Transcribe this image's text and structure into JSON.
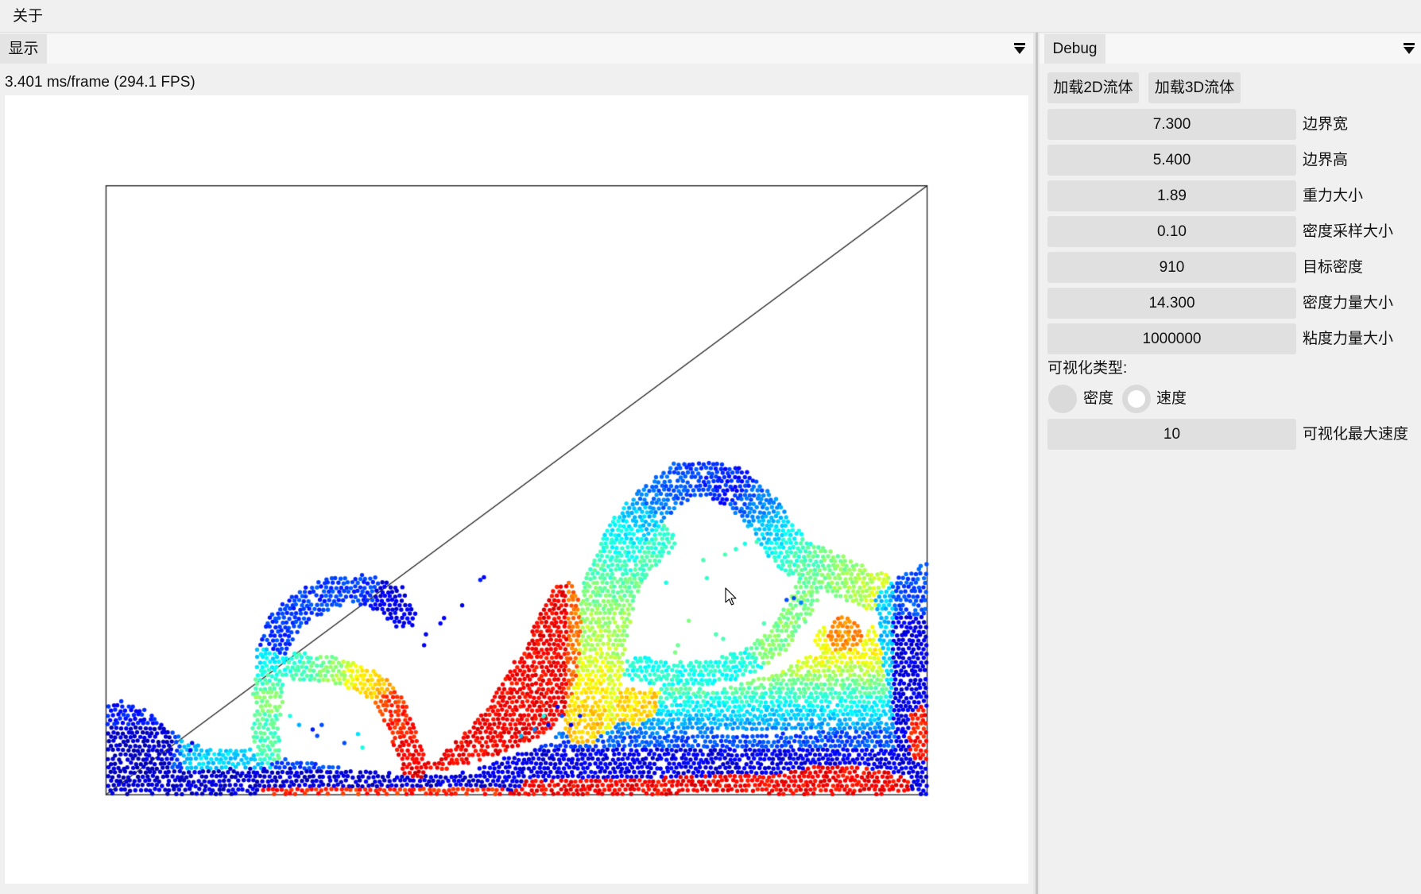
{
  "menu_bar": {
    "items": [
      "关于"
    ]
  },
  "display_window": {
    "title": "显示",
    "frame_stats": "3.401 ms/frame (294.1 FPS)"
  },
  "debug_window": {
    "title": "Debug",
    "buttons": [
      "加载2D流体",
      "加载3D流体"
    ],
    "params": [
      {
        "label": "边界宽",
        "value": "7.300"
      },
      {
        "label": "边界高",
        "value": "5.400"
      },
      {
        "label": "重力大小",
        "value": "1.89"
      },
      {
        "label": "密度采样大小",
        "value": "0.10"
      },
      {
        "label": "目标密度",
        "value": "910"
      },
      {
        "label": "密度力量大小",
        "value": "14.300"
      },
      {
        "label": "粘度力量大小",
        "value": "1000000"
      }
    ],
    "visualization": {
      "label": "可视化类型:",
      "options": [
        {
          "label": "密度",
          "checked": false
        },
        {
          "label": "速度",
          "checked": true
        }
      ],
      "max_speed": {
        "label": "可视化最大速度",
        "value": "10"
      }
    }
  },
  "icons": {
    "window_menu": "caret-down-bar-icon",
    "cursor": "mouse-pointer-icon"
  },
  "colors": {
    "fluid_colormap": [
      "#000080",
      "#0000ff",
      "#0080ff",
      "#00ffff",
      "#80ff80",
      "#ffff00",
      "#ff8000",
      "#ff0000",
      "#800000"
    ]
  }
}
